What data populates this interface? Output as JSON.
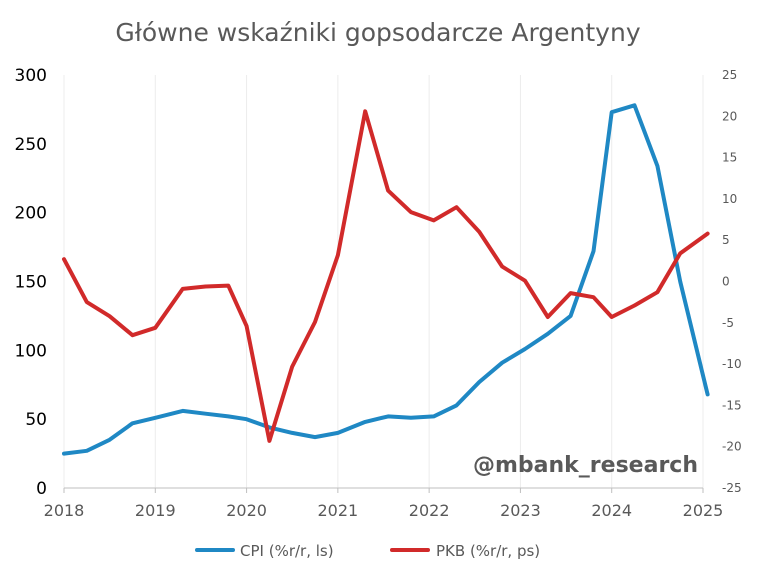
{
  "chart_data": {
    "type": "line",
    "title": "Główne wskaźniki gopsodarcze Argentyny",
    "watermark": "@mbank_research",
    "x_ticks": [
      "2018",
      "2019",
      "2020",
      "2021",
      "2022",
      "2023",
      "2024",
      "2025"
    ],
    "x_range": [
      2018,
      2025
    ],
    "y_left": {
      "range": [
        0,
        300
      ],
      "ticks": [
        "0",
        "50",
        "100",
        "150",
        "200",
        "250",
        "300"
      ]
    },
    "y_right": {
      "range": [
        -25,
        25
      ],
      "ticks": [
        "-25",
        "-20",
        "-15",
        "-10",
        "-5",
        "0",
        "5",
        "10",
        "15",
        "20",
        "25"
      ]
    },
    "grid": "vertical",
    "legend_position": "bottom",
    "series": [
      {
        "name": "CPI (%r/r, ls)",
        "axis": "left",
        "color": "#1f88c4",
        "x": [
          2018.0,
          2018.25,
          2018.5,
          2018.75,
          2019.0,
          2019.3,
          2019.55,
          2019.8,
          2020.0,
          2020.25,
          2020.5,
          2020.75,
          2021.0,
          2021.3,
          2021.55,
          2021.8,
          2022.05,
          2022.3,
          2022.55,
          2022.8,
          2023.05,
          2023.3,
          2023.55,
          2023.8,
          2024.0,
          2024.25,
          2024.5,
          2024.75,
          2025.05
        ],
        "values": [
          25,
          27,
          35,
          47,
          51,
          56,
          54,
          52,
          50,
          44,
          40,
          37,
          40,
          48,
          52,
          51,
          52,
          60,
          77,
          91,
          101,
          112,
          125,
          172,
          273,
          278,
          234,
          150,
          68
        ]
      },
      {
        "name": "PKB (%r/r, ps)",
        "axis": "right",
        "color": "#d12a2a",
        "x": [
          2018.0,
          2018.25,
          2018.5,
          2018.75,
          2019.0,
          2019.3,
          2019.55,
          2019.8,
          2020.0,
          2020.25,
          2020.5,
          2020.75,
          2021.0,
          2021.3,
          2021.55,
          2021.8,
          2022.05,
          2022.3,
          2022.55,
          2022.8,
          2023.05,
          2023.3,
          2023.55,
          2023.8,
          2024.0,
          2024.25,
          2024.5,
          2024.75,
          2025.05
        ],
        "values": [
          2.7,
          -2.5,
          -4.2,
          -6.5,
          -5.6,
          -0.9,
          -0.6,
          -0.5,
          -5.4,
          -19.3,
          -10.3,
          -4.9,
          3.2,
          20.6,
          11.0,
          8.4,
          7.4,
          9.0,
          6.0,
          1.8,
          0.1,
          -4.3,
          -1.4,
          -1.9,
          -4.3,
          -2.9,
          -1.3,
          3.4,
          5.8
        ]
      }
    ]
  }
}
